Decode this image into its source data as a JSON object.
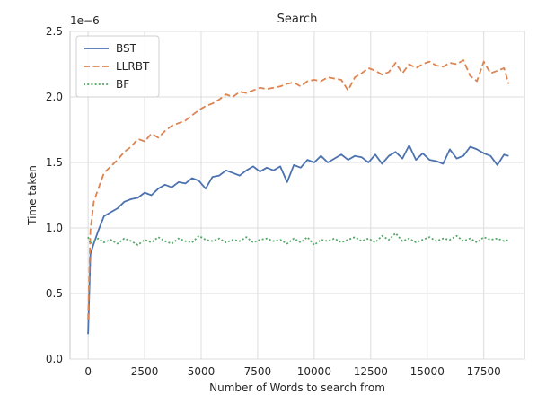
{
  "chart_data": {
    "type": "line",
    "title": "Search",
    "xlabel": "Number of Words to search from",
    "ylabel": "Time taken",
    "y_offset_label": "1e−6",
    "xlim": [
      -800,
      19300
    ],
    "ylim": [
      0,
      2.5
    ],
    "x_ticks": [
      0,
      2500,
      5000,
      7500,
      10000,
      12500,
      15000,
      17500
    ],
    "x_tick_labels": [
      "0",
      "2500",
      "5000",
      "7500",
      "10000",
      "12500",
      "15000",
      "17500"
    ],
    "y_ticks": [
      0.0,
      0.5,
      1.0,
      1.5,
      2.0,
      2.5
    ],
    "y_tick_labels": [
      "0.0",
      "0.5",
      "1.0",
      "1.5",
      "2.0",
      "2.5"
    ],
    "grid": true,
    "legend_position": "top-left",
    "x": [
      0,
      100,
      250,
      450,
      700,
      1000,
      1300,
      1600,
      1900,
      2200,
      2500,
      2800,
      3100,
      3400,
      3700,
      4000,
      4300,
      4600,
      4900,
      5200,
      5500,
      5800,
      6100,
      6400,
      6700,
      7000,
      7300,
      7600,
      7900,
      8200,
      8500,
      8800,
      9100,
      9400,
      9700,
      10000,
      10300,
      10600,
      10900,
      11200,
      11500,
      11800,
      12100,
      12400,
      12700,
      13000,
      13300,
      13600,
      13900,
      14200,
      14500,
      14800,
      15100,
      15400,
      15700,
      16000,
      16300,
      16600,
      16900,
      17200,
      17500,
      17800,
      18100,
      18400,
      18600
    ],
    "series": [
      {
        "name": "BST",
        "color": "#4c72b0",
        "dash": "solid",
        "values": [
          0.19,
          0.8,
          0.88,
          0.98,
          1.09,
          1.12,
          1.15,
          1.2,
          1.22,
          1.23,
          1.27,
          1.25,
          1.3,
          1.33,
          1.31,
          1.35,
          1.34,
          1.38,
          1.36,
          1.3,
          1.39,
          1.4,
          1.44,
          1.42,
          1.4,
          1.44,
          1.47,
          1.43,
          1.46,
          1.44,
          1.47,
          1.35,
          1.48,
          1.46,
          1.52,
          1.5,
          1.55,
          1.5,
          1.53,
          1.56,
          1.52,
          1.55,
          1.54,
          1.5,
          1.56,
          1.49,
          1.55,
          1.58,
          1.53,
          1.63,
          1.52,
          1.57,
          1.52,
          1.51,
          1.49,
          1.6,
          1.53,
          1.55,
          1.62,
          1.6,
          1.57,
          1.55,
          1.48,
          1.56,
          1.55
        ]
      },
      {
        "name": "LLRBT",
        "color": "#dd8452",
        "dash": "dashed",
        "values": [
          0.3,
          0.98,
          1.2,
          1.3,
          1.42,
          1.47,
          1.52,
          1.58,
          1.62,
          1.68,
          1.66,
          1.72,
          1.69,
          1.74,
          1.78,
          1.8,
          1.82,
          1.86,
          1.9,
          1.93,
          1.95,
          1.98,
          2.02,
          2.0,
          2.04,
          2.03,
          2.05,
          2.07,
          2.06,
          2.07,
          2.08,
          2.1,
          2.11,
          2.08,
          2.12,
          2.13,
          2.12,
          2.15,
          2.14,
          2.13,
          2.05,
          2.15,
          2.18,
          2.22,
          2.2,
          2.17,
          2.19,
          2.26,
          2.18,
          2.25,
          2.22,
          2.25,
          2.27,
          2.24,
          2.23,
          2.26,
          2.25,
          2.28,
          2.16,
          2.12,
          2.27,
          2.18,
          2.2,
          2.22,
          2.1
        ]
      },
      {
        "name": "BF",
        "color": "#55a868",
        "dash": "dotted",
        "values": [
          0.93,
          0.88,
          0.9,
          0.92,
          0.89,
          0.91,
          0.88,
          0.92,
          0.9,
          0.87,
          0.91,
          0.89,
          0.93,
          0.9,
          0.88,
          0.92,
          0.9,
          0.89,
          0.94,
          0.91,
          0.9,
          0.92,
          0.89,
          0.91,
          0.9,
          0.93,
          0.89,
          0.91,
          0.92,
          0.9,
          0.91,
          0.88,
          0.92,
          0.89,
          0.93,
          0.87,
          0.91,
          0.9,
          0.92,
          0.89,
          0.91,
          0.93,
          0.9,
          0.92,
          0.89,
          0.94,
          0.91,
          0.96,
          0.9,
          0.92,
          0.89,
          0.91,
          0.93,
          0.9,
          0.92,
          0.91,
          0.94,
          0.9,
          0.92,
          0.89,
          0.93,
          0.91,
          0.92,
          0.9,
          0.91
        ]
      }
    ]
  }
}
